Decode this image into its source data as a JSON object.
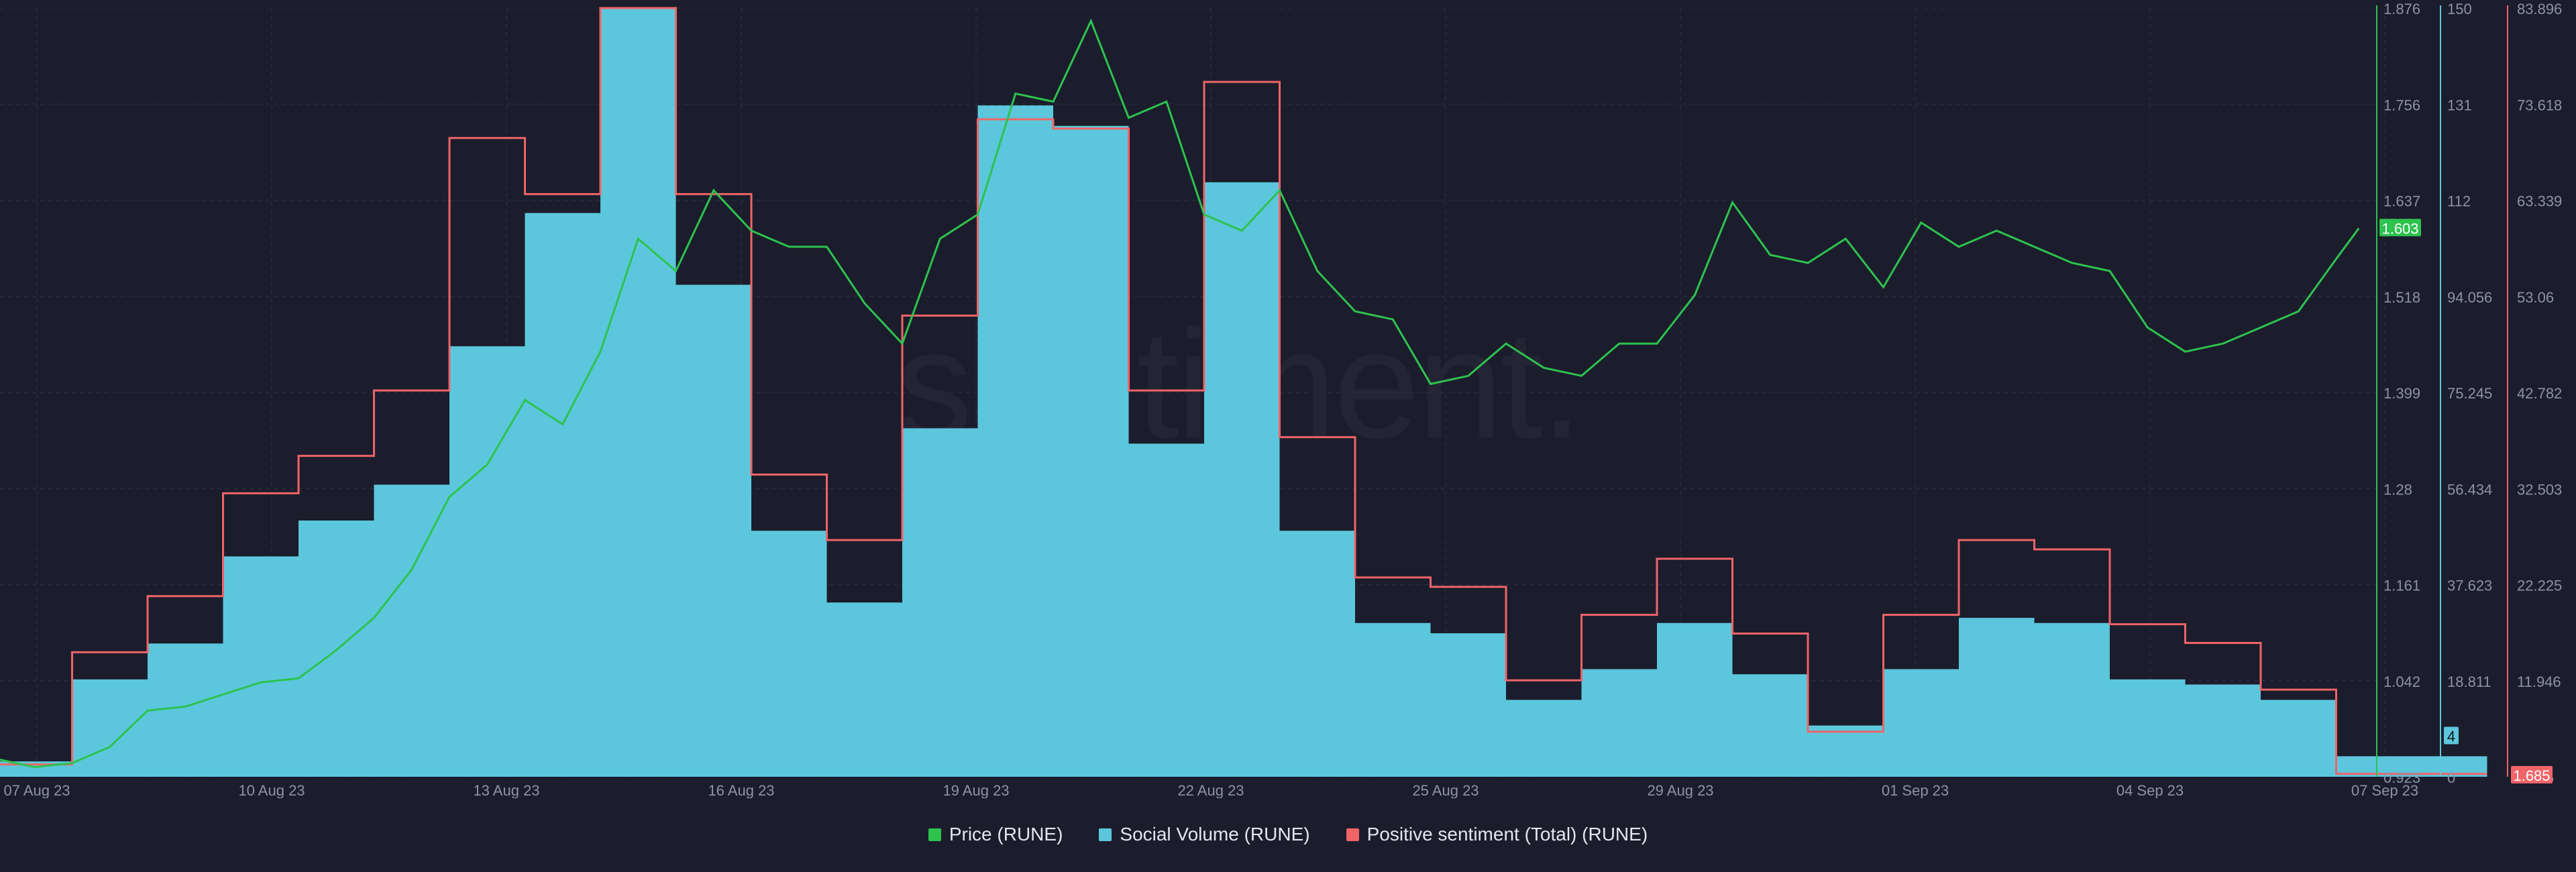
{
  "watermark": "santiment.",
  "colors": {
    "background": "#1b1d2c",
    "price": "#2ec24f",
    "social_volume": "#5cc7dc",
    "sentiment": "#f06468",
    "grid": "#2a2d3d",
    "axis_text": "#8d92a6"
  },
  "legend": [
    {
      "label": "Price (RUNE)",
      "color": "#2ec24f"
    },
    {
      "label": "Social Volume (RUNE)",
      "color": "#5cc7dc"
    },
    {
      "label": "Positive sentiment (Total) (RUNE)",
      "color": "#f06468"
    }
  ],
  "chart_data": {
    "type": "line+bar",
    "x_ticks": [
      "07 Aug 23",
      "10 Aug 23",
      "13 Aug 23",
      "16 Aug 23",
      "19 Aug 23",
      "22 Aug 23",
      "25 Aug 23",
      "29 Aug 23",
      "01 Sep 23",
      "04 Sep 23",
      "07 Sep 23"
    ],
    "axes": {
      "price": {
        "ticks": [
          "1.876",
          "1.756",
          "1.637",
          "1.518",
          "1.399",
          "1.28",
          "1.161",
          "1.042",
          "0.923"
        ],
        "min": 0.923,
        "max": 1.876,
        "current": "1.603"
      },
      "social_volume": {
        "ticks": [
          "150",
          "131",
          "112",
          "94.056",
          "75.245",
          "56.434",
          "37.623",
          "18.811",
          "0"
        ],
        "min": 0,
        "max": 150,
        "current": "4"
      },
      "sentiment": {
        "ticks": [
          "83.896",
          "73.618",
          "63.339",
          "53.06",
          "42.782",
          "32.503",
          "22.225",
          "11.946",
          "1.685"
        ],
        "min": 1.685,
        "max": 83.896,
        "current": "1.685"
      }
    },
    "grid": true,
    "days": [
      "06 Aug 23",
      "07 Aug 23",
      "08 Aug 23",
      "09 Aug 23",
      "10 Aug 23",
      "11 Aug 23",
      "12 Aug 23",
      "13 Aug 23",
      "14 Aug 23",
      "15 Aug 23",
      "16 Aug 23",
      "17 Aug 23",
      "18 Aug 23",
      "19 Aug 23",
      "20 Aug 23",
      "21 Aug 23",
      "22 Aug 23",
      "23 Aug 23",
      "24 Aug 23",
      "25 Aug 23",
      "26 Aug 23",
      "27 Aug 23",
      "28 Aug 23",
      "29 Aug 23",
      "30 Aug 23",
      "31 Aug 23",
      "01 Sep 23",
      "02 Sep 23",
      "03 Sep 23",
      "04 Sep 23",
      "05 Sep 23",
      "06 Sep 23",
      "07 Sep 23"
    ],
    "social_volume": [
      3,
      19,
      26,
      43,
      50,
      57,
      84,
      110,
      150,
      96,
      48,
      34,
      68,
      131,
      127,
      65,
      116,
      48,
      30,
      28,
      15,
      21,
      30,
      20,
      10,
      21,
      31,
      30,
      19,
      18,
      15,
      4,
      4
    ],
    "positive_sentiment": [
      3,
      15,
      21,
      32,
      36,
      43,
      70,
      64,
      83.9,
      64,
      34,
      27,
      51,
      72,
      71,
      43,
      76,
      38,
      23,
      22,
      12,
      19,
      25,
      17,
      6.5,
      19,
      27,
      26,
      18,
      16,
      11,
      2,
      2
    ],
    "price": {
      "days": [
        0,
        0.5,
        1,
        1.5,
        2,
        2.5,
        3,
        3.5,
        4,
        4.5,
        5,
        5.5,
        6,
        6.5,
        7,
        7.5,
        8,
        8.5,
        9,
        9.5,
        10,
        10.5,
        11,
        11.5,
        12,
        12.5,
        13,
        13.5,
        14,
        14.5,
        15,
        15.5,
        16,
        16.5,
        17,
        17.5,
        18,
        18.5,
        19,
        19.5,
        20,
        20.5,
        21,
        21.5,
        22,
        22.5,
        23,
        23.5,
        24,
        24.5,
        25,
        25.5,
        26,
        26.5,
        27,
        27.5,
        28,
        28.5,
        29,
        29.5,
        30,
        30.5,
        31,
        31.3
      ],
      "values": [
        0.945,
        0.935,
        0.94,
        0.96,
        1.005,
        1.01,
        1.025,
        1.04,
        1.045,
        1.08,
        1.12,
        1.18,
        1.27,
        1.31,
        1.39,
        1.36,
        1.45,
        1.59,
        1.55,
        1.65,
        1.6,
        1.58,
        1.58,
        1.51,
        1.46,
        1.59,
        1.62,
        1.77,
        1.76,
        1.86,
        1.74,
        1.76,
        1.62,
        1.6,
        1.65,
        1.55,
        1.5,
        1.49,
        1.41,
        1.42,
        1.46,
        1.43,
        1.42,
        1.46,
        1.46,
        1.52,
        1.635,
        1.57,
        1.56,
        1.59,
        1.53,
        1.61,
        1.58,
        1.6,
        1.58,
        1.56,
        1.55,
        1.48,
        1.45,
        1.46,
        1.48,
        1.5,
        1.565,
        1.603
      ]
    }
  }
}
